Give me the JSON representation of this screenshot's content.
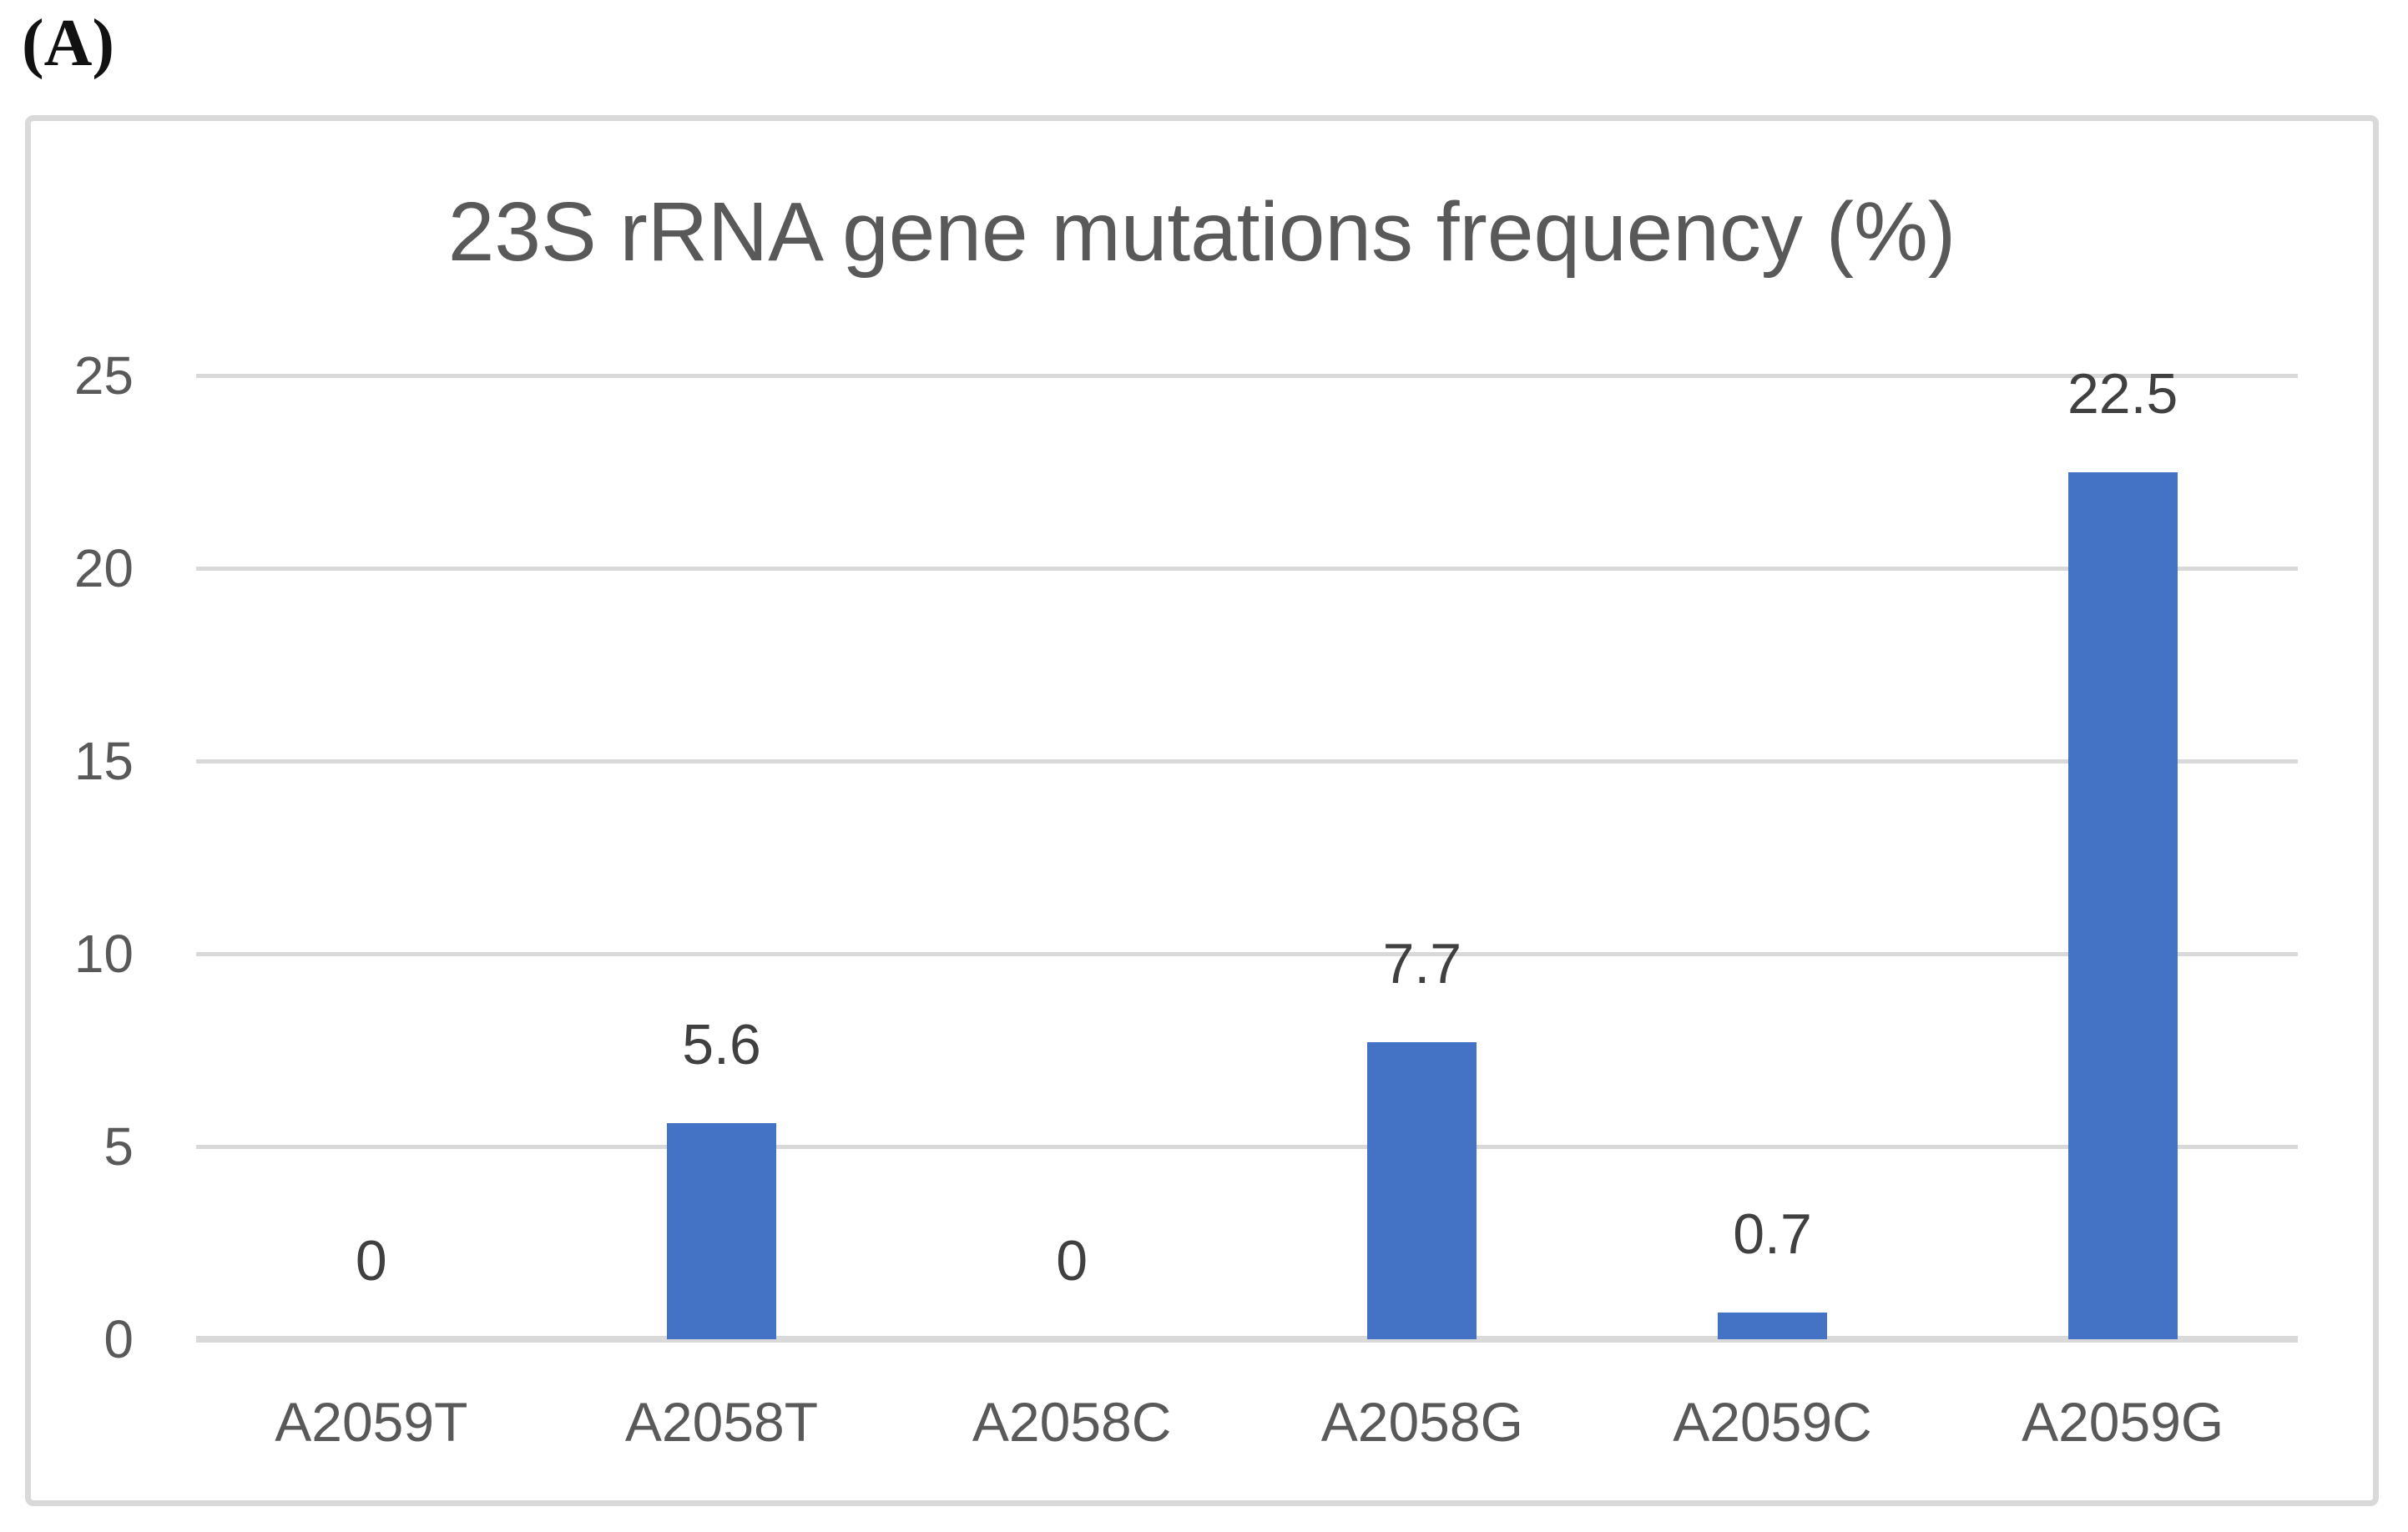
{
  "panel_label": "(A)",
  "chart_data": {
    "type": "bar",
    "title": "23S rRNA gene mutations frequency (%)",
    "categories": [
      "A2059T",
      "A2058T",
      "A2058C",
      "A2058G",
      "A2059C",
      "A2059G"
    ],
    "values": [
      0,
      5.6,
      0,
      7.7,
      0.7,
      22.5
    ],
    "data_labels": [
      "0",
      "5.6",
      "0",
      "7.7",
      "0.7",
      "22.5"
    ],
    "xlabel": "",
    "ylabel": "",
    "ylim": [
      0,
      25
    ],
    "yticks": [
      0,
      5,
      10,
      15,
      20,
      25
    ],
    "grid": true,
    "legend": false,
    "colors": {
      "bar": "#4472c4",
      "gridline": "#d9d9d9",
      "axis_line": "#d9d9d9",
      "tick_text": "#595959",
      "category_text": "#595959",
      "title_text": "#595959",
      "data_label_text": "#404040",
      "frame_border": "#d9d9d9",
      "background": "#ffffff"
    }
  }
}
